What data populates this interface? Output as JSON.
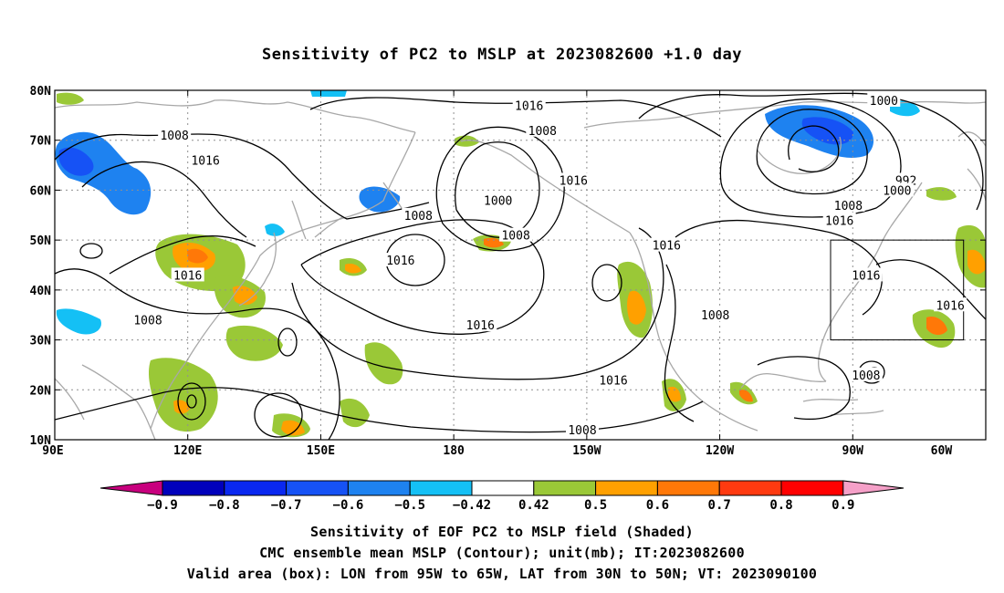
{
  "title": "Sensitivity of PC2 to MSLP at 2023082600 +1.0 day",
  "map": {
    "lat_ticks": [
      "80N",
      "70N",
      "60N",
      "50N",
      "40N",
      "30N",
      "20N",
      "10N"
    ],
    "lon_ticks": [
      "90E",
      "120E",
      "150E",
      "180",
      "150W",
      "120W",
      "90W",
      "60W"
    ],
    "lat_range": [
      10,
      80
    ],
    "lon_range": [
      90,
      300
    ],
    "validation_box": {
      "lon": [
        265,
        295
      ],
      "lat": [
        30,
        50
      ]
    },
    "contour_labels": [
      {
        "text": "1016",
        "lon": 197,
        "lat": 77
      },
      {
        "text": "1000",
        "lon": 277,
        "lat": 78
      },
      {
        "text": "1008",
        "lon": 117,
        "lat": 71
      },
      {
        "text": "1008",
        "lon": 200,
        "lat": 72
      },
      {
        "text": "1016",
        "lon": 124,
        "lat": 66
      },
      {
        "text": "992",
        "lon": 282,
        "lat": 62
      },
      {
        "text": "1016",
        "lon": 207,
        "lat": 62
      },
      {
        "text": "1000",
        "lon": 280,
        "lat": 60
      },
      {
        "text": "1000",
        "lon": 190,
        "lat": 58
      },
      {
        "text": "1008",
        "lon": 269,
        "lat": 57
      },
      {
        "text": "1016",
        "lon": 267,
        "lat": 54
      },
      {
        "text": "1008",
        "lon": 172,
        "lat": 55
      },
      {
        "text": "1008",
        "lon": 194,
        "lat": 51
      },
      {
        "text": "1016",
        "lon": 228,
        "lat": 49
      },
      {
        "text": "1016",
        "lon": 120,
        "lat": 43
      },
      {
        "text": "1016",
        "lon": 168,
        "lat": 46
      },
      {
        "text": "1016",
        "lon": 273,
        "lat": 43
      },
      {
        "text": "1016",
        "lon": 292,
        "lat": 37
      },
      {
        "text": "1008",
        "lon": 111,
        "lat": 34
      },
      {
        "text": "1008",
        "lon": 239,
        "lat": 35
      },
      {
        "text": "1016",
        "lon": 186,
        "lat": 33
      },
      {
        "text": "1008",
        "lon": 273,
        "lat": 23
      },
      {
        "text": "1016",
        "lon": 216,
        "lat": 22
      },
      {
        "text": "1008",
        "lon": 209,
        "lat": 12
      }
    ]
  },
  "colorbar": {
    "labels": [
      "−0.9",
      "−0.8",
      "−0.7",
      "−0.6",
      "−0.5",
      "−0.42",
      "0.42",
      "0.5",
      "0.6",
      "0.7",
      "0.8",
      "0.9"
    ],
    "colors": [
      "#0000bb",
      "#0a28f0",
      "#1652f5",
      "#1e82f0",
      "#14c0f5",
      "#ffffff",
      "#9ac837",
      "#ffa000",
      "#ff7808",
      "#ff3a10",
      "#ff0000"
    ],
    "under_color": "#c8007e",
    "over_color": "#f5a0c8"
  },
  "footer": {
    "line1": "Sensitivity of EOF PC2 to MSLP field (Shaded)",
    "line2": "CMC ensemble mean MSLP (Contour); unit(mb); IT:2023082600",
    "line3": "Valid area (box): LON from 95W to 65W, LAT from 30N to 50N; VT: 2023090100"
  }
}
